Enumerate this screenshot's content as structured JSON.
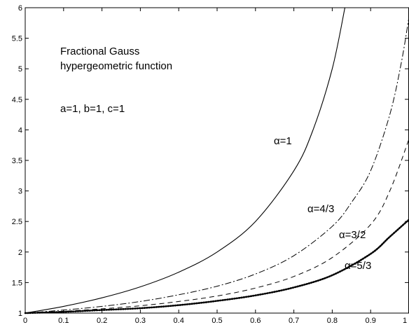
{
  "chart_data": {
    "type": "line",
    "title": "",
    "xlabel": "",
    "ylabel": "",
    "xlim": [
      0,
      1
    ],
    "ylim": [
      1,
      6
    ],
    "x_ticks": [
      0,
      0.1,
      0.2,
      0.3,
      0.4,
      0.5,
      0.6,
      0.7,
      0.8,
      0.9,
      1
    ],
    "x_tick_labels": [
      "0",
      "0.1",
      "0.2",
      "0.3",
      "0.4",
      "0.5",
      "0.6",
      "0.7",
      "0.8",
      "0.9",
      "1"
    ],
    "y_ticks": [
      1,
      1.5,
      2,
      2.5,
      3,
      3.5,
      4,
      4.5,
      5,
      5.5,
      6
    ],
    "y_tick_labels": [
      "1",
      "1.5",
      "2",
      "2.5",
      "3",
      "3.5",
      "4",
      "4.5",
      "5",
      "5.5",
      "6"
    ],
    "grid": false,
    "legend": "none",
    "annotations": [
      "Fractional Gauss",
      "hypergeometric function",
      "a=1, b=1, c=1"
    ],
    "series": [
      {
        "label": "α=1",
        "style": "solid",
        "x": [
          0,
          0.1,
          0.2,
          0.3,
          0.4,
          0.5,
          0.6,
          0.7,
          0.75,
          0.8,
          0.833
        ],
        "y": [
          1.0,
          1.11,
          1.25,
          1.43,
          1.67,
          2.0,
          2.5,
          3.33,
          4.0,
          5.0,
          6.0
        ]
      },
      {
        "label": "α=4/3",
        "style": "dashdot",
        "x": [
          0,
          0.1,
          0.2,
          0.3,
          0.4,
          0.5,
          0.6,
          0.7,
          0.8,
          0.85,
          0.9,
          0.95,
          0.98,
          1.0
        ],
        "y": [
          1.0,
          1.05,
          1.11,
          1.19,
          1.3,
          1.44,
          1.64,
          1.94,
          2.42,
          2.81,
          3.33,
          4.25,
          5.1,
          5.85
        ]
      },
      {
        "label": "α=3/2",
        "style": "dashed",
        "x": [
          0,
          0.1,
          0.2,
          0.3,
          0.4,
          0.5,
          0.6,
          0.7,
          0.8,
          0.9,
          0.95,
          1.0
        ],
        "y": [
          1.0,
          1.03,
          1.07,
          1.12,
          1.19,
          1.28,
          1.41,
          1.6,
          1.91,
          2.45,
          3.0,
          3.85
        ]
      },
      {
        "label": "α=5/3",
        "style": "dotted",
        "x": [
          0,
          0.1,
          0.2,
          0.3,
          0.4,
          0.5,
          0.6,
          0.7,
          0.8,
          0.9,
          0.95,
          1.0
        ],
        "y": [
          1.0,
          1.02,
          1.05,
          1.08,
          1.13,
          1.2,
          1.29,
          1.42,
          1.62,
          1.97,
          2.25,
          2.53
        ]
      }
    ]
  }
}
